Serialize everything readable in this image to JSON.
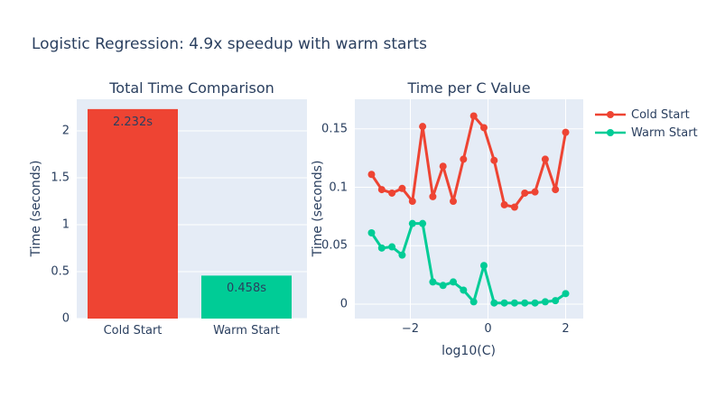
{
  "figure": {
    "title": "Logistic Regression: 4.9x speedup with warm starts"
  },
  "colors": {
    "cold": "#ee4433",
    "warm": "#00cc96",
    "plot_bg": "#e5ecf6",
    "grid": "#ffffff",
    "font": "#2a3f5f",
    "paper_bg": "#ffffff"
  },
  "chart_data": [
    {
      "type": "bar",
      "title": "Total Time Comparison",
      "categories": [
        "Cold Start",
        "Warm Start"
      ],
      "values": [
        2.232,
        0.458
      ],
      "bar_labels": [
        "2.232s",
        "0.458s"
      ],
      "bar_colors": [
        "#ee4433",
        "#00cc96"
      ],
      "xlabel": "",
      "ylabel": "Time (seconds)",
      "yticks": [
        0,
        0.5,
        1,
        1.5,
        2
      ],
      "ylim": [
        0,
        2.337
      ],
      "grid": true
    },
    {
      "type": "line",
      "title": "Time per C Value",
      "xlabel": "log10(C)",
      "ylabel": "Time (seconds)",
      "xticks": [
        -2,
        0,
        2
      ],
      "yticks": [
        0,
        0.05,
        0.1,
        0.15
      ],
      "xlim": [
        -3.43,
        2.45
      ],
      "ylim": [
        -0.0124,
        0.1753
      ],
      "grid": true,
      "legend_position": "outside-top-right",
      "x": [
        -3,
        -2.737,
        -2.474,
        -2.211,
        -1.947,
        -1.684,
        -1.421,
        -1.158,
        -0.895,
        -0.632,
        -0.368,
        -0.105,
        0.158,
        0.421,
        0.684,
        0.947,
        1.211,
        1.474,
        1.737,
        2
      ],
      "series": [
        {
          "name": "Cold Start",
          "color": "#ee4433",
          "values": [
            0.111,
            0.098,
            0.095,
            0.099,
            0.088,
            0.152,
            0.092,
            0.118,
            0.088,
            0.124,
            0.161,
            0.151,
            0.123,
            0.085,
            0.083,
            0.095,
            0.096,
            0.124,
            0.098,
            0.147
          ]
        },
        {
          "name": "Warm Start",
          "color": "#00cc96",
          "values": [
            0.061,
            0.048,
            0.049,
            0.042,
            0.069,
            0.069,
            0.019,
            0.016,
            0.019,
            0.012,
            0.002,
            0.033,
            0.001,
            0.001,
            0.001,
            0.001,
            0.001,
            0.002,
            0.003,
            0.009
          ]
        }
      ]
    }
  ]
}
